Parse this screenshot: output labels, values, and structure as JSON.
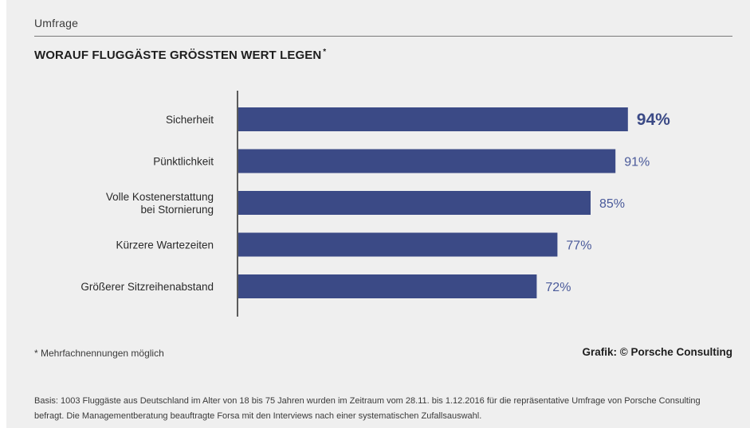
{
  "header": {
    "kicker": "Umfrage",
    "title": "WORAUF FLUGGÄSTE GRÖSSTEN WERT LEGEN",
    "title_marker": "*"
  },
  "chart_data": {
    "type": "bar",
    "orientation": "horizontal",
    "categories": [
      [
        "Sicherheit"
      ],
      [
        "Pünktlichkeit"
      ],
      [
        "Volle Kostenerstattung",
        "bei Stornierung"
      ],
      [
        "Kürzere Wartezeiten"
      ],
      [
        "Größerer Sitzreihenabstand"
      ]
    ],
    "values": [
      94,
      91,
      85,
      77,
      72
    ],
    "value_labels": [
      "94%",
      "91%",
      "85%",
      "77%",
      "72%"
    ],
    "highlight_index": 0,
    "unit": "%",
    "xlim": [
      0,
      100
    ],
    "grid": false,
    "colors": {
      "bar": "#3b4a86",
      "value_label": "#4a5a9a",
      "highlight_label": "#3b4a86"
    }
  },
  "footer": {
    "footnote": "* Mehrfachnennungen möglich",
    "credit": "Grafik: © Porsche Consulting",
    "basis": "Basis: 1003 Fluggäste aus Deutschland im Alter von 18 bis 75 Jahren wurden im Zeitraum vom 28.11. bis 1.12.2016 für die repräsentative Umfrage von Porsche Consulting befragt. Die Managementberatung beauftragte Forsa mit den Interviews nach einer systematischen Zufallsauswahl."
  }
}
